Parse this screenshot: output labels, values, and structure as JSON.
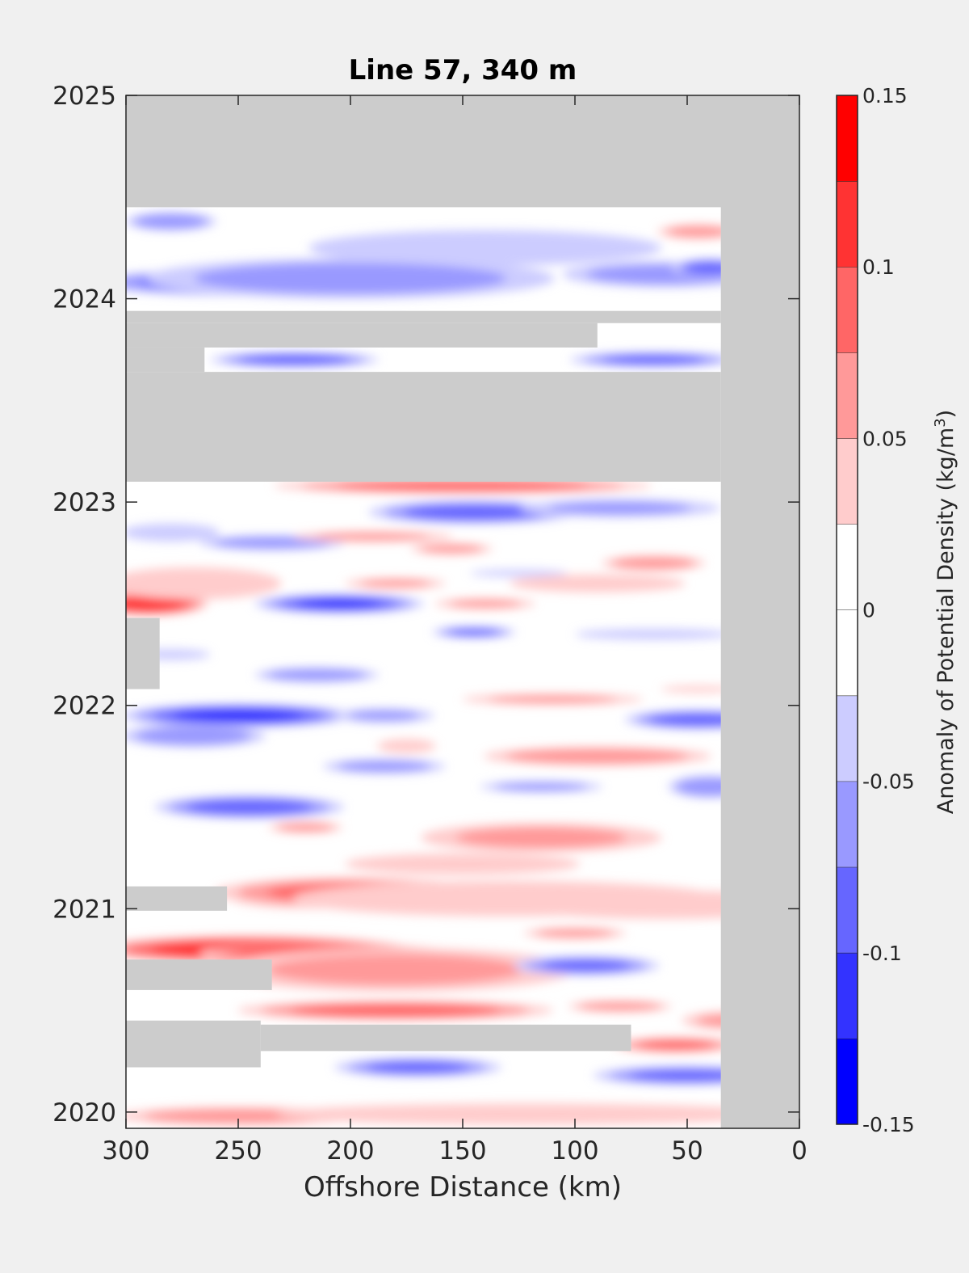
{
  "chart_data": {
    "type": "heatmap",
    "title": "Line 57, 340 m",
    "xlabel": "Offshore Distance (km)",
    "ylabel": "",
    "x_axis": {
      "range": [
        300,
        0
      ],
      "reversed": true,
      "ticks": [
        "300",
        "250",
        "200",
        "150",
        "100",
        "50",
        "0"
      ],
      "tick_values": [
        300,
        250,
        200,
        150,
        100,
        50,
        0
      ]
    },
    "y_axis": {
      "range": [
        2019.92,
        2025
      ],
      "ticks": [
        "2020",
        "2021",
        "2022",
        "2023",
        "2024",
        "2025"
      ],
      "tick_values": [
        2020,
        2021,
        2022,
        2023,
        2024,
        2025
      ]
    },
    "colorbar": {
      "label_prefix": "Anomaly of Potential Density (kg/m",
      "label_exp": "3",
      "label_suffix": ")",
      "range": [
        -0.15,
        0.15
      ],
      "tick_labels": [
        "0.15",
        "0.1",
        "0.05",
        "0",
        "-0.05",
        "-0.1",
        "-0.15"
      ],
      "tick_values": [
        0.15,
        0.1,
        0.05,
        0,
        -0.05,
        -0.1,
        -0.15
      ],
      "levels": [
        -0.15,
        -0.125,
        -0.1,
        -0.075,
        -0.05,
        -0.025,
        0,
        0.025,
        0.05,
        0.075,
        0.1,
        0.125,
        0.15
      ],
      "colors": [
        "#0000ff",
        "#3333ff",
        "#6666ff",
        "#9999ff",
        "#ccccff",
        "#ffffff",
        "#ffffff",
        "#ffcccc",
        "#ff9999",
        "#ff6666",
        "#ff3333",
        "#ff0000"
      ]
    },
    "missing_color": "#cccccc",
    "grid": false,
    "blobs": [
      {
        "x": 280,
        "y": 2024.38,
        "rx": 22,
        "ry": 0.05,
        "value": -0.07
      },
      {
        "x": 140,
        "y": 2024.25,
        "rx": 90,
        "ry": 0.1,
        "value": -0.04
      },
      {
        "x": 250,
        "y": 2024.08,
        "rx": 70,
        "ry": 0.07,
        "value": -0.09
      },
      {
        "x": 200,
        "y": 2024.1,
        "rx": 100,
        "ry": 0.11,
        "value": -0.06
      },
      {
        "x": 60,
        "y": 2024.12,
        "rx": 50,
        "ry": 0.07,
        "value": -0.06
      },
      {
        "x": 40,
        "y": 2024.15,
        "rx": 18,
        "ry": 0.05,
        "value": -0.09
      },
      {
        "x": 45,
        "y": 2024.33,
        "rx": 20,
        "ry": 0.04,
        "value": 0.06
      },
      {
        "x": 225,
        "y": 2023.7,
        "rx": 40,
        "ry": 0.04,
        "value": -0.09
      },
      {
        "x": 65,
        "y": 2023.7,
        "rx": 40,
        "ry": 0.04,
        "value": -0.08
      },
      {
        "x": 150,
        "y": 2023.08,
        "rx": 90,
        "ry": 0.04,
        "value": 0.09
      },
      {
        "x": 145,
        "y": 2022.95,
        "rx": 50,
        "ry": 0.06,
        "value": -0.09
      },
      {
        "x": 80,
        "y": 2022.97,
        "rx": 50,
        "ry": 0.05,
        "value": -0.05
      },
      {
        "x": 235,
        "y": 2022.8,
        "rx": 35,
        "ry": 0.04,
        "value": -0.07
      },
      {
        "x": 280,
        "y": 2022.85,
        "rx": 25,
        "ry": 0.05,
        "value": -0.04
      },
      {
        "x": 190,
        "y": 2022.83,
        "rx": 40,
        "ry": 0.03,
        "value": 0.05
      },
      {
        "x": 155,
        "y": 2022.77,
        "rx": 20,
        "ry": 0.03,
        "value": 0.06
      },
      {
        "x": 290,
        "y": 2022.5,
        "rx": 28,
        "ry": 0.06,
        "value": 0.12
      },
      {
        "x": 270,
        "y": 2022.6,
        "rx": 45,
        "ry": 0.09,
        "value": 0.04
      },
      {
        "x": 205,
        "y": 2022.5,
        "rx": 40,
        "ry": 0.05,
        "value": -0.1
      },
      {
        "x": 180,
        "y": 2022.6,
        "rx": 25,
        "ry": 0.03,
        "value": 0.05
      },
      {
        "x": 90,
        "y": 2022.6,
        "rx": 45,
        "ry": 0.05,
        "value": 0.04
      },
      {
        "x": 65,
        "y": 2022.7,
        "rx": 25,
        "ry": 0.04,
        "value": 0.07
      },
      {
        "x": 125,
        "y": 2022.65,
        "rx": 25,
        "ry": 0.02,
        "value": -0.04
      },
      {
        "x": 140,
        "y": 2022.5,
        "rx": 25,
        "ry": 0.03,
        "value": 0.05
      },
      {
        "x": 145,
        "y": 2022.36,
        "rx": 20,
        "ry": 0.03,
        "value": -0.08
      },
      {
        "x": 65,
        "y": 2022.35,
        "rx": 40,
        "ry": 0.03,
        "value": -0.04
      },
      {
        "x": 215,
        "y": 2022.15,
        "rx": 30,
        "ry": 0.04,
        "value": -0.07
      },
      {
        "x": 280,
        "y": 2022.25,
        "rx": 20,
        "ry": 0.03,
        "value": -0.04
      },
      {
        "x": 250,
        "y": 2021.95,
        "rx": 55,
        "ry": 0.06,
        "value": -0.11
      },
      {
        "x": 270,
        "y": 2021.85,
        "rx": 35,
        "ry": 0.06,
        "value": -0.07
      },
      {
        "x": 185,
        "y": 2021.95,
        "rx": 25,
        "ry": 0.04,
        "value": -0.05
      },
      {
        "x": 110,
        "y": 2022.03,
        "rx": 45,
        "ry": 0.03,
        "value": 0.05
      },
      {
        "x": 45,
        "y": 2021.93,
        "rx": 35,
        "ry": 0.05,
        "value": -0.09
      },
      {
        "x": 45,
        "y": 2022.08,
        "rx": 20,
        "ry": 0.02,
        "value": 0.03
      },
      {
        "x": 90,
        "y": 2021.75,
        "rx": 55,
        "ry": 0.05,
        "value": 0.07
      },
      {
        "x": 175,
        "y": 2021.8,
        "rx": 15,
        "ry": 0.04,
        "value": 0.04
      },
      {
        "x": 185,
        "y": 2021.7,
        "rx": 30,
        "ry": 0.04,
        "value": -0.06
      },
      {
        "x": 115,
        "y": 2021.6,
        "rx": 30,
        "ry": 0.03,
        "value": -0.06
      },
      {
        "x": 40,
        "y": 2021.6,
        "rx": 20,
        "ry": 0.06,
        "value": -0.07
      },
      {
        "x": 245,
        "y": 2021.5,
        "rx": 45,
        "ry": 0.06,
        "value": -0.09
      },
      {
        "x": 220,
        "y": 2021.4,
        "rx": 18,
        "ry": 0.03,
        "value": 0.06
      },
      {
        "x": 115,
        "y": 2021.35,
        "rx": 60,
        "ry": 0.08,
        "value": 0.05
      },
      {
        "x": 150,
        "y": 2021.22,
        "rx": 60,
        "ry": 0.06,
        "value": 0.04
      },
      {
        "x": 215,
        "y": 2021.05,
        "rx": 40,
        "ry": 0.05,
        "value": 0.12
      },
      {
        "x": 200,
        "y": 2021.08,
        "rx": 65,
        "ry": 0.08,
        "value": 0.08
      },
      {
        "x": 130,
        "y": 2021.05,
        "rx": 110,
        "ry": 0.1,
        "value": 0.04
      },
      {
        "x": 60,
        "y": 2021.02,
        "rx": 80,
        "ry": 0.08,
        "value": 0.04
      },
      {
        "x": 100,
        "y": 2020.88,
        "rx": 25,
        "ry": 0.03,
        "value": 0.06
      },
      {
        "x": 245,
        "y": 2020.8,
        "rx": 75,
        "ry": 0.07,
        "value": 0.12
      },
      {
        "x": 210,
        "y": 2020.78,
        "rx": 60,
        "ry": 0.05,
        "value": 0.14
      },
      {
        "x": 180,
        "y": 2020.7,
        "rx": 90,
        "ry": 0.12,
        "value": 0.05
      },
      {
        "x": 95,
        "y": 2020.72,
        "rx": 35,
        "ry": 0.05,
        "value": -0.08
      },
      {
        "x": 180,
        "y": 2020.5,
        "rx": 75,
        "ry": 0.05,
        "value": 0.09
      },
      {
        "x": 80,
        "y": 2020.52,
        "rx": 25,
        "ry": 0.03,
        "value": 0.07
      },
      {
        "x": 30,
        "y": 2020.45,
        "rx": 25,
        "ry": 0.05,
        "value": 0.05
      },
      {
        "x": 55,
        "y": 2020.33,
        "rx": 30,
        "ry": 0.04,
        "value": 0.08
      },
      {
        "x": 170,
        "y": 2020.22,
        "rx": 40,
        "ry": 0.05,
        "value": -0.08
      },
      {
        "x": 50,
        "y": 2020.18,
        "rx": 45,
        "ry": 0.05,
        "value": -0.08
      },
      {
        "x": 250,
        "y": 2019.98,
        "rx": 60,
        "ry": 0.05,
        "value": 0.06
      },
      {
        "x": 120,
        "y": 2019.99,
        "rx": 130,
        "ry": 0.06,
        "value": 0.04
      }
    ],
    "missing_regions": [
      {
        "x0": 300,
        "x1": 0,
        "y0": 2024.45,
        "y1": 2025.0
      },
      {
        "x0": 35,
        "x1": 0,
        "y0": 2019.92,
        "y1": 2025.0
      },
      {
        "x0": 300,
        "x1": 35,
        "y0": 2023.88,
        "y1": 2023.94
      },
      {
        "x0": 300,
        "x1": 90,
        "y0": 2023.76,
        "y1": 2023.88
      },
      {
        "x0": 300,
        "x1": 265,
        "y0": 2023.64,
        "y1": 2023.76
      },
      {
        "x0": 300,
        "x1": 35,
        "y0": 2023.1,
        "y1": 2023.64
      },
      {
        "x0": 300,
        "x1": 285,
        "y0": 2022.08,
        "y1": 2022.43
      },
      {
        "x0": 300,
        "x1": 255,
        "y0": 2020.99,
        "y1": 2021.11
      },
      {
        "x0": 300,
        "x1": 235,
        "y0": 2020.6,
        "y1": 2020.75
      },
      {
        "x0": 300,
        "x1": 240,
        "y0": 2020.22,
        "y1": 2020.45
      },
      {
        "x0": 240,
        "x1": 75,
        "y0": 2020.3,
        "y1": 2020.43
      }
    ]
  }
}
